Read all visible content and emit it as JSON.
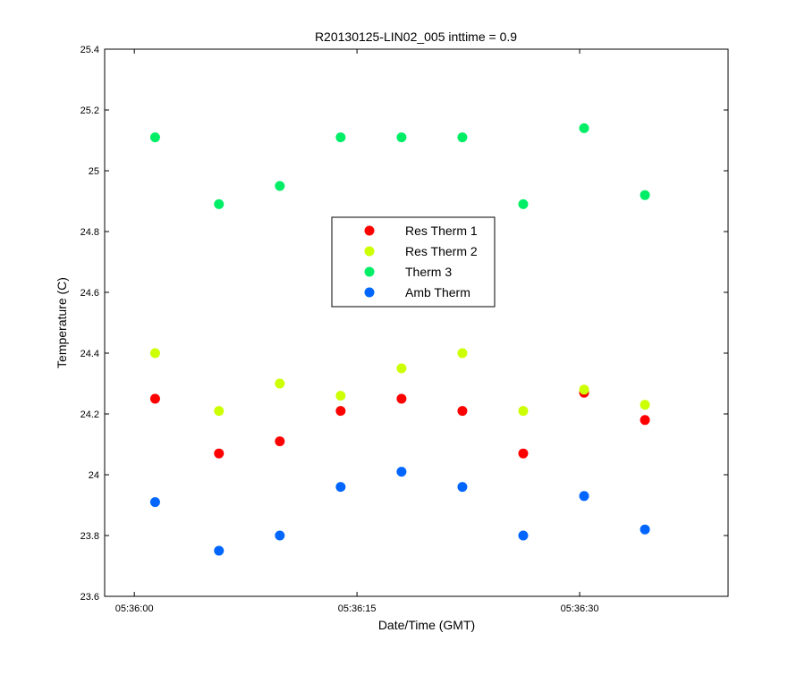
{
  "chart_data": {
    "type": "scatter",
    "title": "R20130125-LIN02_005 inttime = 0.9",
    "xlabel": "Date/Time (GMT)",
    "ylabel": "Temperature (C)",
    "x_unit": "seconds",
    "xlim": [
      "05:35:58",
      "05:36:40"
    ],
    "ylim": [
      23.6,
      25.4
    ],
    "x_ticks": [
      "05:36:00",
      "05:36:15",
      "05:36:30"
    ],
    "y_ticks": [
      "23.6",
      "23.8",
      "24",
      "24.2",
      "24.4",
      "24.6",
      "24.8",
      "25",
      "25.2",
      "25.4"
    ],
    "grid": false,
    "legend_position": "center",
    "x": [
      "05:36:01.4",
      "05:36:05.7",
      "05:36:09.8",
      "05:36:13.9",
      "05:36:18.0",
      "05:36:22.1",
      "05:36:26.2",
      "05:36:30.3",
      "05:36:34.4"
    ],
    "series": [
      {
        "name": "Res Therm 1",
        "color": "#ff0000",
        "values": [
          24.25,
          24.07,
          24.11,
          24.21,
          24.25,
          24.21,
          24.07,
          24.27,
          24.18
        ]
      },
      {
        "name": "Res Therm 2",
        "color": "#ccff00",
        "values": [
          24.4,
          24.21,
          24.3,
          24.26,
          24.35,
          24.4,
          24.21,
          24.28,
          24.23
        ]
      },
      {
        "name": "Therm 3",
        "color": "#00ee66",
        "values": [
          25.11,
          24.89,
          24.95,
          25.11,
          25.11,
          25.11,
          24.89,
          25.14,
          24.92
        ]
      },
      {
        "name": "Amb Therm",
        "color": "#0066ff",
        "values": [
          23.91,
          23.75,
          23.8,
          23.96,
          24.01,
          23.96,
          23.8,
          23.93,
          23.82
        ]
      }
    ]
  }
}
